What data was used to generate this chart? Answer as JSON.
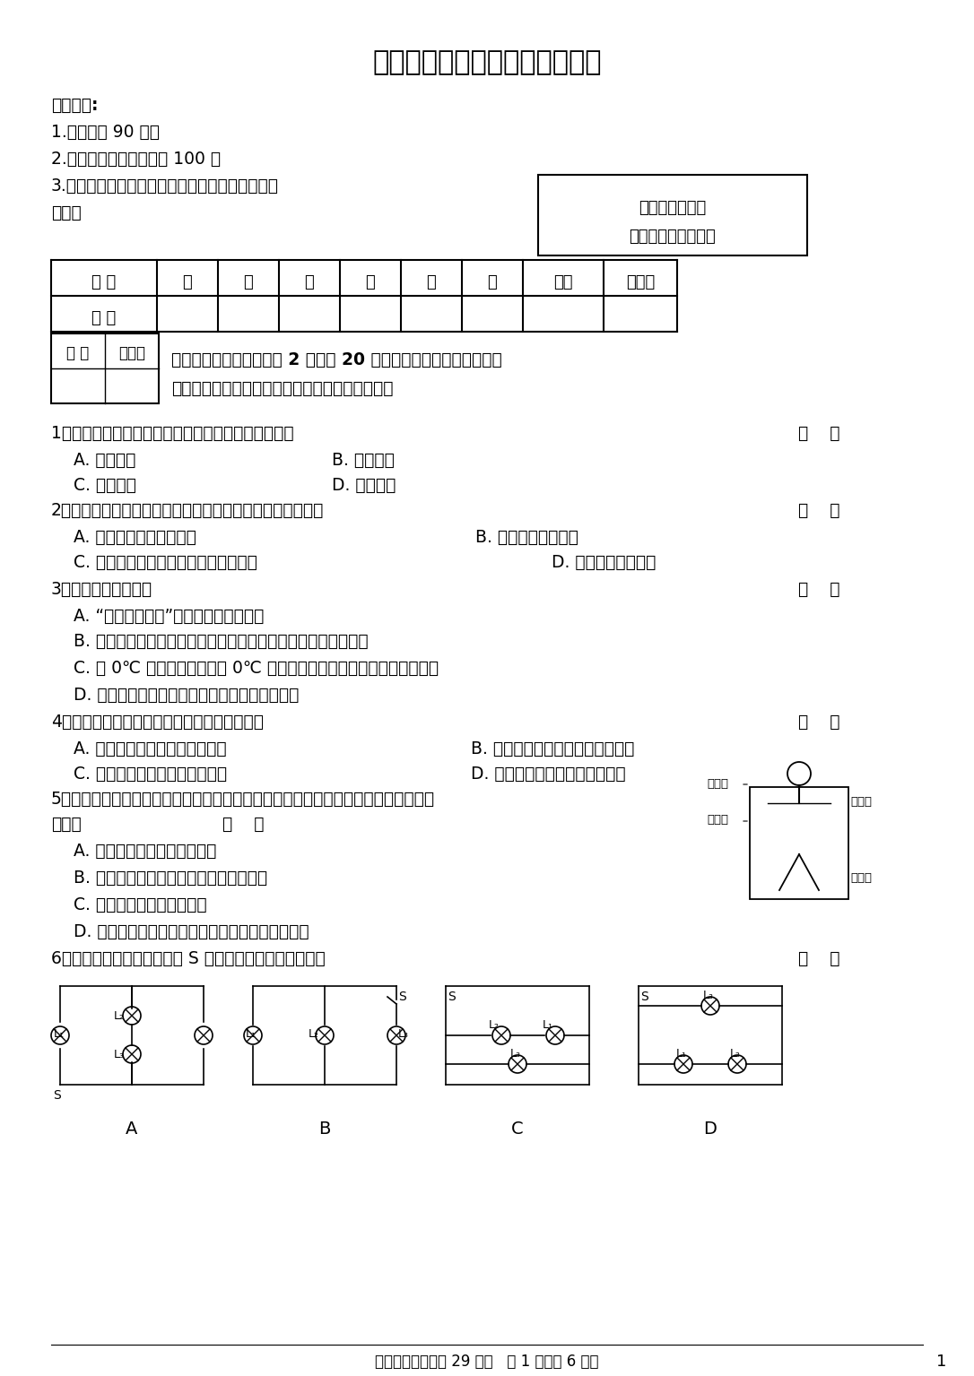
{
  "title": "初三上学期第一次月考物理试卷",
  "bg_color": "#ffffff",
  "text_color": "#000000",
  "notice_title": "考生注意:",
  "notices": [
    "1.考试时间 90 分钟",
    "2.全卷共六道大题，总分 100 分",
    "3.使用答题卡的考生，请将答案填写在答题卡的指"
  ],
  "notice_line4": "定位置",
  "box_text1": "本考场试卷序号",
  "box_text2": "（由监考教师填写）",
  "table1_headers": [
    "题 号",
    "一",
    "二",
    "三",
    "四",
    "五",
    "六",
    "总分",
    "核分人"
  ],
  "table1_row2": [
    "得 分",
    "",
    "",
    "",
    "",
    "",
    "",
    "",
    ""
  ],
  "grader_labels": [
    "得 分",
    "评卷人"
  ],
  "sec_line1": "一、单项选择题（每小题 2 分，共 20 分。每小题只有一个选项是正",
  "sec_line2": "确的，请把正确选项的字母填写在题后的括号内）",
  "q1": "1．下列现象中，说明分子在不停地做无规则运动的是",
  "q1a": "A. 尘土飞扬",
  "q1b": "B. 茶香四溢",
  "q1c": "C. 树叶纷飞",
  "q1d": "D. 瑞雪飘飘",
  "q2": "2．将热水倒进玻璃杯中，玻璃杯会变热，下列说法正确的是",
  "q2a": "A. 水将温度传给了玻璃杯",
  "q2b": "B. 水含有的热量减少",
  "q2c": "C. 玻璃杯增加的内能大于水减少的内能",
  "q2d": "D. 能的总量保持不变",
  "q3": "3．下列说法正确的是",
  "q3a": "A. “破镜不能重圆”说明分子间没有引力",
  "q3b": "B. 发生热传递时，热量总是从内能大的物体传递到内能小的物体",
  "q3c": "C. 把 0℃ 的冰块加热熔化成 0℃ 的水，若不考虑水的蒸发，其内能不变",
  "q3d": "D. 同一物体温度降低得越多，放出的热量就越多",
  "q4": "4．下面情景中，通过做功使物体内能增加的是",
  "q4a": "A. 把铁丝反复弯折，弯折处变热",
  "q4b": "B. 把钢球放入炉火中，烧一段时间",
  "q4c": "C. 冬天，用热水袋对手进行取暖",
  "q4d": "D. 水烧开时，水蒸气将壶盖顶起",
  "q5_line1": "5．如图所示，用毛皮摩擦过的橡胶棒接触验电器后，验电器金属箔张开，以下说法正",
  "q5_line2": "确的是",
  "q5a": "A. 毛皮摩擦过的橡胶棒带正电",
  "q5b": "B. 验电器的工作原理是同种电荷相互排斥",
  "q5c": "C. 通常情况下橡胶棒是导体",
  "q5d": "D. 金属箔张开瞬间电流的方向是由金属球到金属箔",
  "q6": "6．图所示的电路中，当开关 S 闭合后，三盏灯为串联的是",
  "circuit_labels": [
    "A",
    "B",
    "C",
    "D"
  ],
  "footer": "物理试卷（铁锋区 29 中）   第 1 页（共 6 页）",
  "page_num": "1",
  "bracket": "（    ）",
  "electroscope_labels": [
    "金属球",
    "金属杆",
    "绝缘垫",
    "金属箔"
  ]
}
